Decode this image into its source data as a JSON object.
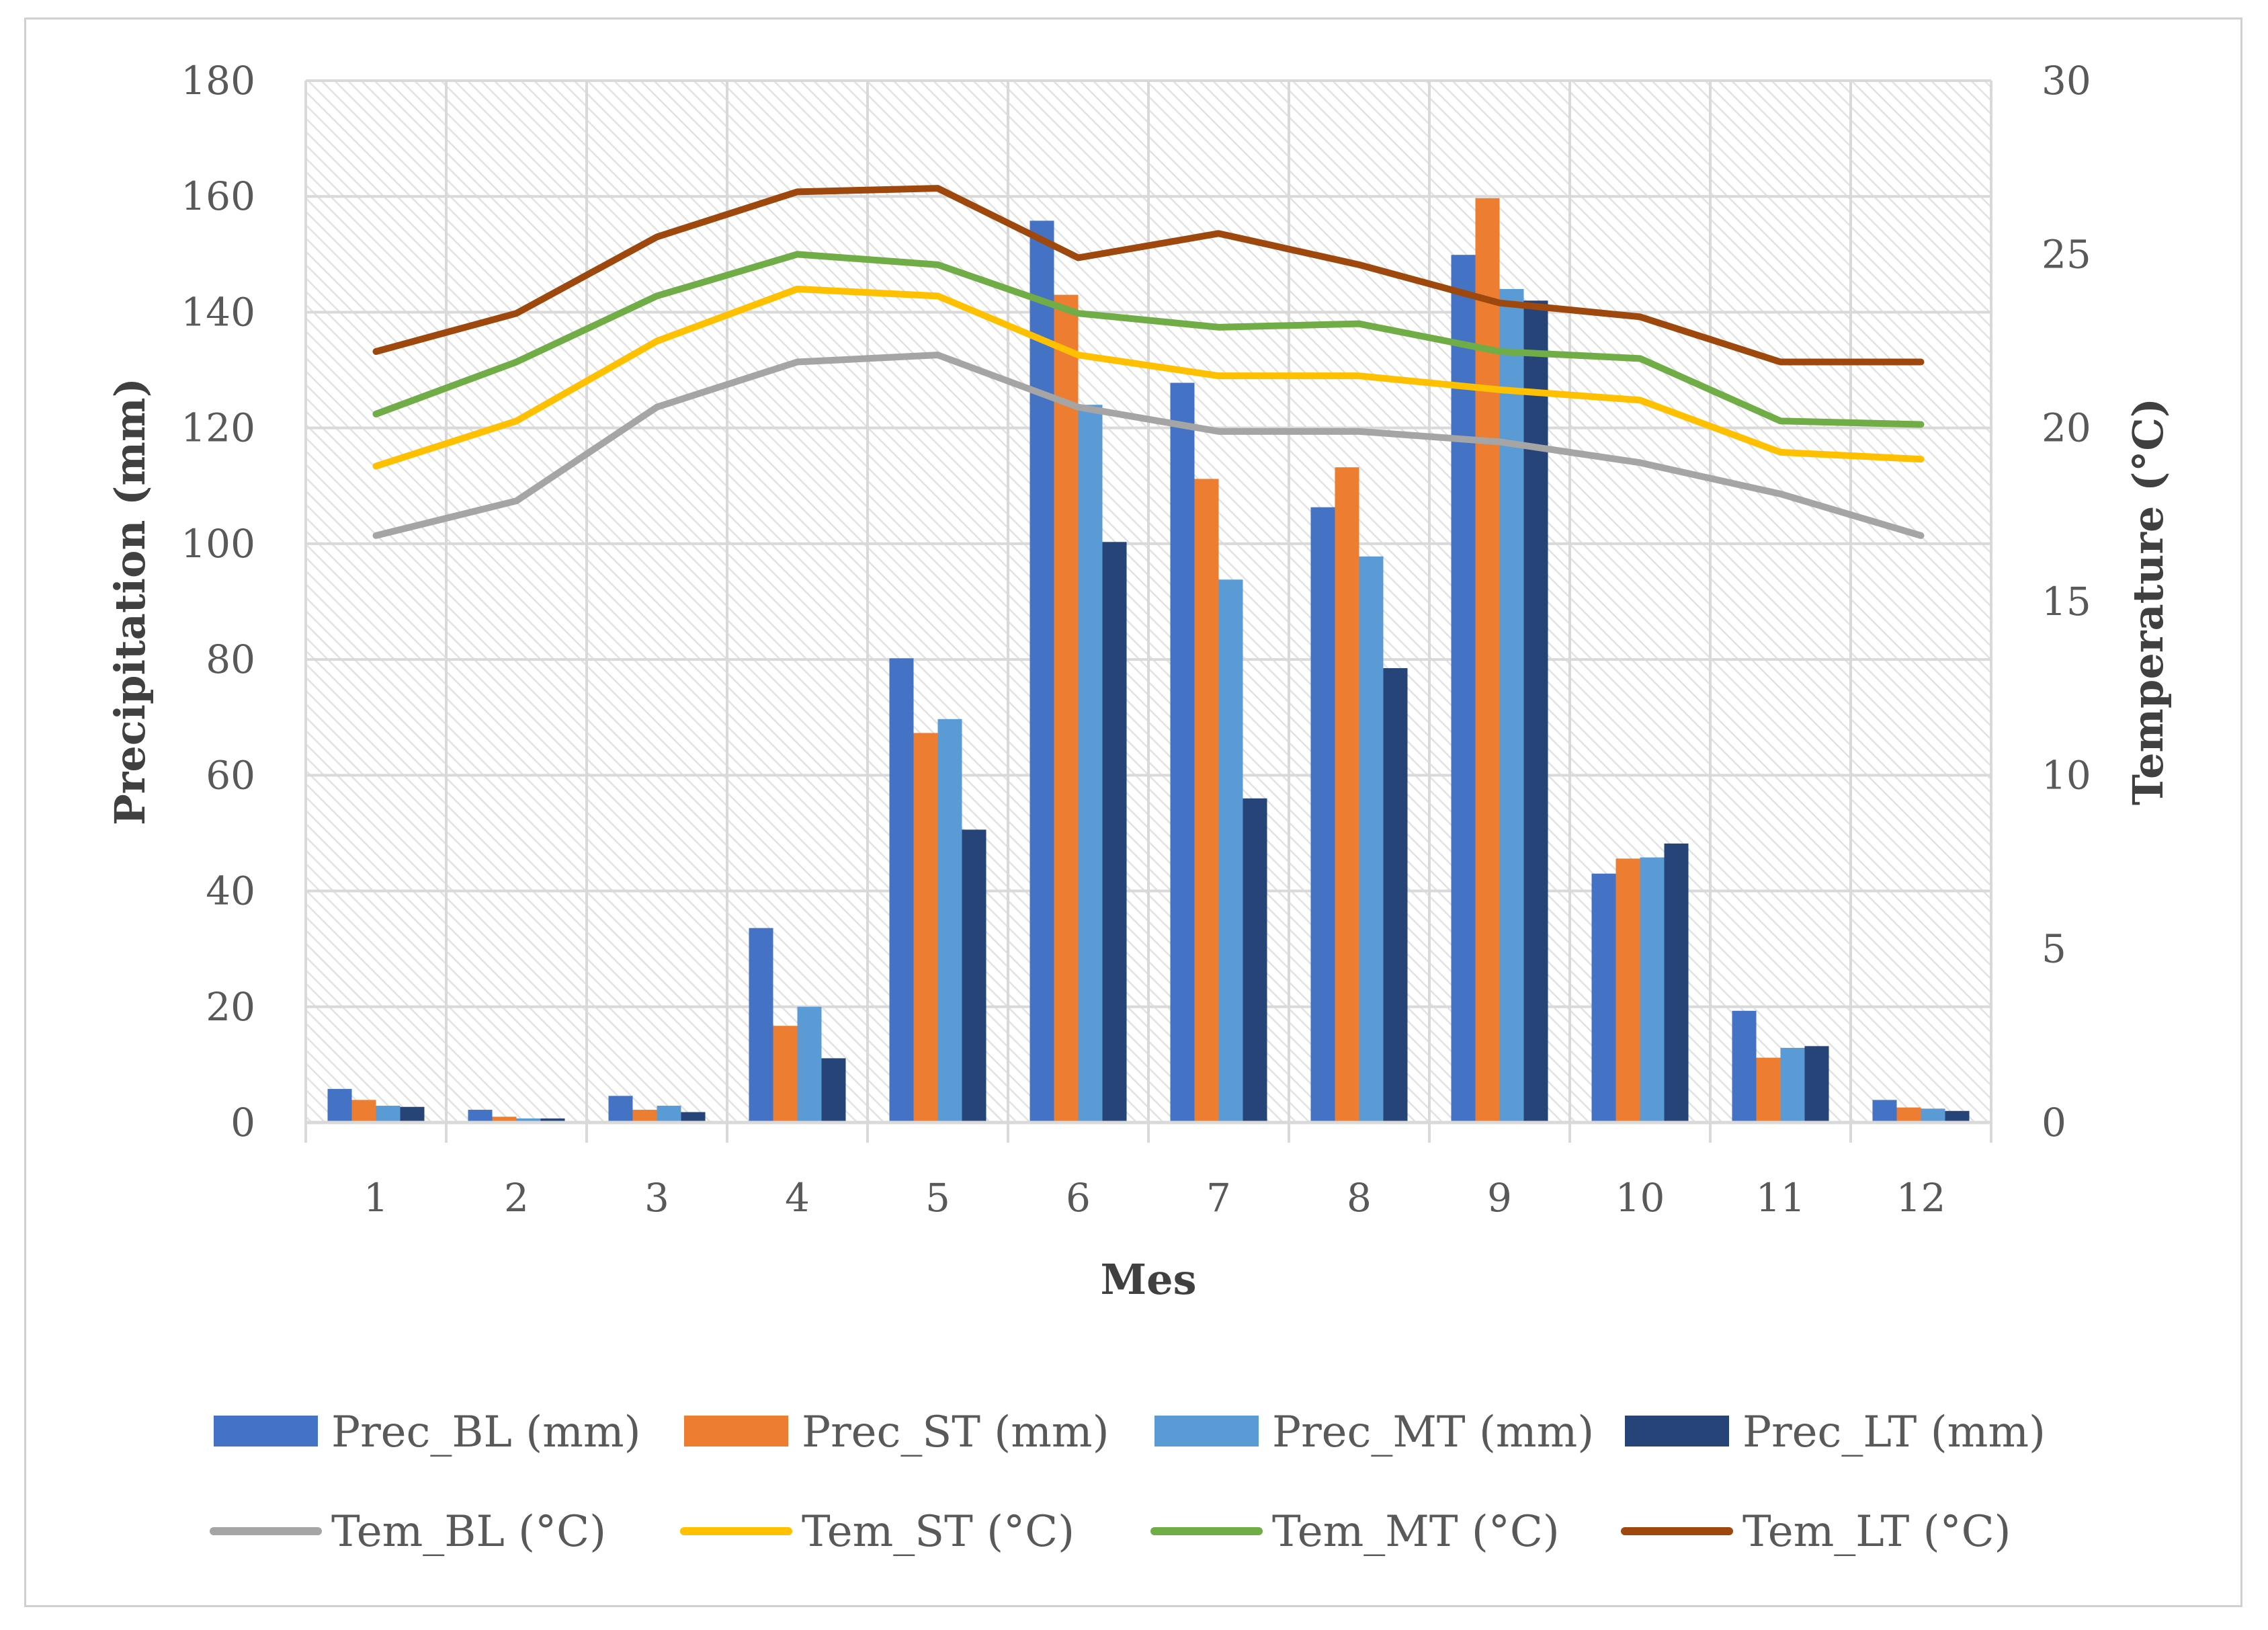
{
  "chart_data": {
    "type": "bar",
    "xlabel": "Mes",
    "ylabel": "Precipitation (mm)",
    "y2label": "Temperature (°C)",
    "categories": [
      "1",
      "2",
      "3",
      "4",
      "5",
      "6",
      "7",
      "8",
      "9",
      "10",
      "11",
      "12"
    ],
    "ylim": [
      0,
      180
    ],
    "yticks": [
      0,
      20,
      40,
      60,
      80,
      100,
      120,
      140,
      160,
      180
    ],
    "y2lim": [
      0,
      30
    ],
    "y2ticks": [
      0,
      5,
      10,
      15,
      20,
      25,
      30
    ],
    "grid": true,
    "legend_position": "bottom",
    "bar_series": [
      {
        "name": "Prec_BL (mm)",
        "color": "#4472C4",
        "values": [
          5.8,
          2.2,
          4.6,
          33.6,
          80.2,
          155.8,
          127.8,
          106.3,
          149.9,
          43.0,
          19.3,
          3.9
        ]
      },
      {
        "name": "Prec_ST (mm)",
        "color": "#ED7D31",
        "values": [
          3.9,
          1.0,
          2.2,
          16.7,
          67.3,
          143.0,
          111.2,
          113.2,
          159.7,
          45.6,
          11.2,
          2.6
        ]
      },
      {
        "name": "Prec_MT (mm)",
        "color": "#5B9BD5",
        "values": [
          2.9,
          0.7,
          2.9,
          20.0,
          69.7,
          124.0,
          93.8,
          97.8,
          144.0,
          45.8,
          12.9,
          2.4
        ]
      },
      {
        "name": "Prec_LT (mm)",
        "color": "#264478",
        "values": [
          2.7,
          0.7,
          1.8,
          11.1,
          50.6,
          100.3,
          56.0,
          78.5,
          142.0,
          48.2,
          13.2,
          2.0
        ]
      }
    ],
    "line_series": [
      {
        "name": "Tem_BL (°C)",
        "color": "#A5A5A5",
        "values": [
          16.9,
          17.9,
          20.6,
          21.9,
          22.1,
          20.6,
          19.9,
          19.9,
          19.6,
          19.0,
          18.1,
          16.9
        ]
      },
      {
        "name": "Tem_ST (°C)",
        "color": "#FFC000",
        "values": [
          18.9,
          20.2,
          22.5,
          24.0,
          23.8,
          22.1,
          21.5,
          21.5,
          21.1,
          20.8,
          19.3,
          19.1
        ]
      },
      {
        "name": "Tem_MT (°C)",
        "color": "#70AD47",
        "values": [
          20.4,
          21.9,
          23.8,
          25.0,
          24.7,
          23.3,
          22.9,
          23.0,
          22.2,
          22.0,
          20.2,
          20.1
        ]
      },
      {
        "name": "Tem_LT (°C)",
        "color": "#9E480E",
        "values": [
          22.2,
          23.3,
          25.5,
          26.8,
          26.9,
          24.9,
          25.6,
          24.7,
          23.6,
          23.2,
          21.9,
          21.9
        ]
      }
    ]
  }
}
